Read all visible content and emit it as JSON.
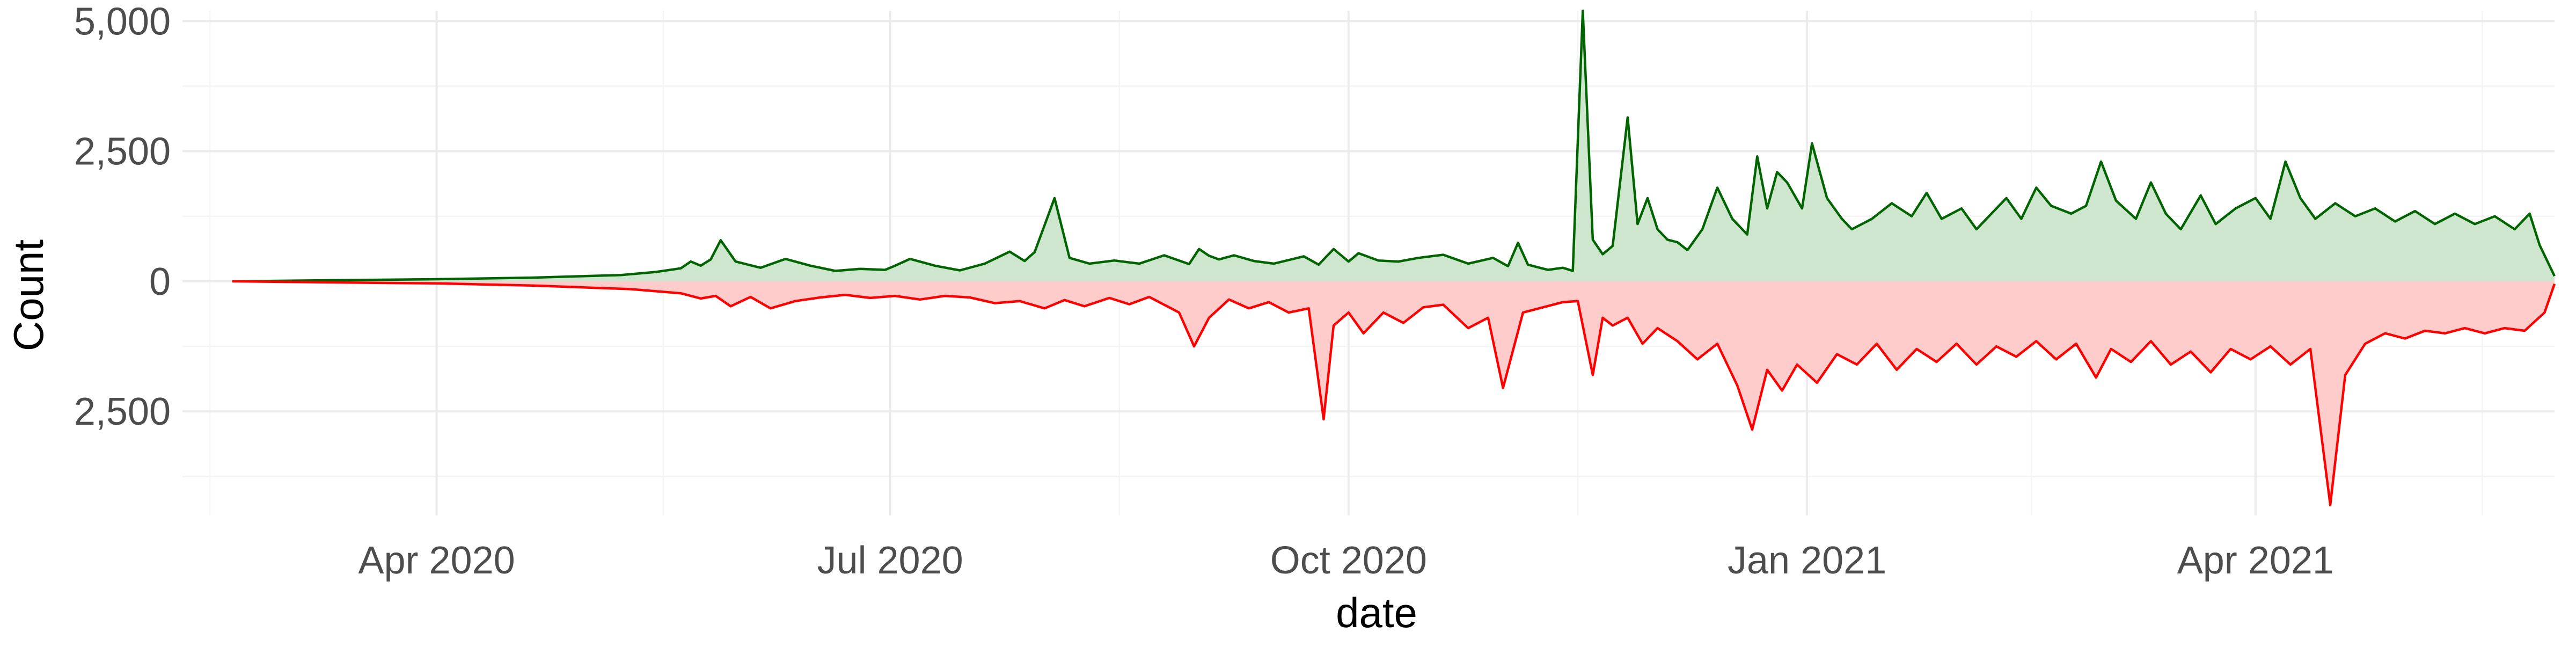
{
  "chart_data": {
    "type": "area",
    "title": "",
    "xlabel": "date",
    "ylabel": "Count",
    "x_range": [
      "2020-02-10",
      "2021-05-31"
    ],
    "ylim": [
      -4500,
      5200
    ],
    "x_ticks": [
      {
        "date": "2020-04-01",
        "label": "Apr 2020"
      },
      {
        "date": "2020-07-01",
        "label": "Jul 2020"
      },
      {
        "date": "2020-10-01",
        "label": "Oct 2020"
      },
      {
        "date": "2021-01-01",
        "label": "Jan 2021"
      },
      {
        "date": "2021-04-01",
        "label": "Apr 2021"
      }
    ],
    "y_ticks": [
      {
        "value": 5000,
        "label": "5,000"
      },
      {
        "value": 2500,
        "label": "2,500"
      },
      {
        "value": 0,
        "label": "0"
      },
      {
        "value": -2500,
        "label": "2,500"
      }
    ],
    "grid": true,
    "legend": "none",
    "series": [
      {
        "direction": "positive",
        "color": "#006400",
        "fill": "#cde6cd",
        "points": [
          [
            "2020-02-20",
            0
          ],
          [
            "2020-03-10",
            20
          ],
          [
            "2020-04-01",
            40
          ],
          [
            "2020-04-20",
            70
          ],
          [
            "2020-05-08",
            120
          ],
          [
            "2020-05-15",
            180
          ],
          [
            "2020-05-20",
            250
          ],
          [
            "2020-05-22",
            380
          ],
          [
            "2020-05-24",
            300
          ],
          [
            "2020-05-26",
            420
          ],
          [
            "2020-05-28",
            790
          ],
          [
            "2020-05-31",
            380
          ],
          [
            "2020-06-05",
            260
          ],
          [
            "2020-06-10",
            430
          ],
          [
            "2020-06-15",
            300
          ],
          [
            "2020-06-20",
            200
          ],
          [
            "2020-06-25",
            240
          ],
          [
            "2020-06-30",
            220
          ],
          [
            "2020-07-02",
            300
          ],
          [
            "2020-07-05",
            430
          ],
          [
            "2020-07-10",
            300
          ],
          [
            "2020-07-15",
            210
          ],
          [
            "2020-07-20",
            340
          ],
          [
            "2020-07-25",
            570
          ],
          [
            "2020-07-28",
            390
          ],
          [
            "2020-07-30",
            560
          ],
          [
            "2020-08-03",
            1600
          ],
          [
            "2020-08-06",
            450
          ],
          [
            "2020-08-10",
            340
          ],
          [
            "2020-08-15",
            400
          ],
          [
            "2020-08-20",
            340
          ],
          [
            "2020-08-25",
            500
          ],
          [
            "2020-08-30",
            330
          ],
          [
            "2020-09-01",
            620
          ],
          [
            "2020-09-03",
            490
          ],
          [
            "2020-09-05",
            420
          ],
          [
            "2020-09-08",
            500
          ],
          [
            "2020-09-12",
            390
          ],
          [
            "2020-09-16",
            340
          ],
          [
            "2020-09-22",
            480
          ],
          [
            "2020-09-25",
            320
          ],
          [
            "2020-09-28",
            620
          ],
          [
            "2020-10-01",
            380
          ],
          [
            "2020-10-03",
            540
          ],
          [
            "2020-10-07",
            400
          ],
          [
            "2020-10-11",
            380
          ],
          [
            "2020-10-15",
            450
          ],
          [
            "2020-10-20",
            510
          ],
          [
            "2020-10-25",
            340
          ],
          [
            "2020-10-30",
            450
          ],
          [
            "2020-11-02",
            290
          ],
          [
            "2020-11-04",
            740
          ],
          [
            "2020-11-06",
            320
          ],
          [
            "2020-11-08",
            270
          ],
          [
            "2020-11-10",
            220
          ],
          [
            "2020-11-13",
            260
          ],
          [
            "2020-11-15",
            200
          ],
          [
            "2020-11-17",
            5200
          ],
          [
            "2020-11-19",
            800
          ],
          [
            "2020-11-21",
            520
          ],
          [
            "2020-11-23",
            680
          ],
          [
            "2020-11-26",
            3150
          ],
          [
            "2020-11-28",
            1100
          ],
          [
            "2020-11-30",
            1600
          ],
          [
            "2020-12-02",
            1000
          ],
          [
            "2020-12-04",
            800
          ],
          [
            "2020-12-06",
            750
          ],
          [
            "2020-12-08",
            600
          ],
          [
            "2020-12-11",
            1000
          ],
          [
            "2020-12-14",
            1800
          ],
          [
            "2020-12-17",
            1200
          ],
          [
            "2020-12-20",
            900
          ],
          [
            "2020-12-22",
            2400
          ],
          [
            "2020-12-24",
            1400
          ],
          [
            "2020-12-26",
            2100
          ],
          [
            "2020-12-28",
            1900
          ],
          [
            "2020-12-31",
            1400
          ],
          [
            "2021-01-02",
            2650
          ],
          [
            "2021-01-05",
            1600
          ],
          [
            "2021-01-08",
            1200
          ],
          [
            "2021-01-10",
            1000
          ],
          [
            "2021-01-14",
            1200
          ],
          [
            "2021-01-18",
            1500
          ],
          [
            "2021-01-22",
            1250
          ],
          [
            "2021-01-25",
            1700
          ],
          [
            "2021-01-28",
            1200
          ],
          [
            "2021-02-01",
            1400
          ],
          [
            "2021-02-04",
            1000
          ],
          [
            "2021-02-07",
            1300
          ],
          [
            "2021-02-10",
            1600
          ],
          [
            "2021-02-13",
            1200
          ],
          [
            "2021-02-16",
            1800
          ],
          [
            "2021-02-19",
            1450
          ],
          [
            "2021-02-23",
            1300
          ],
          [
            "2021-02-26",
            1450
          ],
          [
            "2021-03-01",
            2300
          ],
          [
            "2021-03-04",
            1550
          ],
          [
            "2021-03-08",
            1200
          ],
          [
            "2021-03-11",
            1900
          ],
          [
            "2021-03-14",
            1300
          ],
          [
            "2021-03-17",
            1000
          ],
          [
            "2021-03-21",
            1650
          ],
          [
            "2021-03-24",
            1100
          ],
          [
            "2021-03-28",
            1400
          ],
          [
            "2021-04-01",
            1600
          ],
          [
            "2021-04-04",
            1200
          ],
          [
            "2021-04-07",
            2300
          ],
          [
            "2021-04-10",
            1600
          ],
          [
            "2021-04-13",
            1200
          ],
          [
            "2021-04-17",
            1500
          ],
          [
            "2021-04-21",
            1250
          ],
          [
            "2021-04-25",
            1400
          ],
          [
            "2021-04-29",
            1150
          ],
          [
            "2021-05-03",
            1350
          ],
          [
            "2021-05-07",
            1100
          ],
          [
            "2021-05-11",
            1300
          ],
          [
            "2021-05-15",
            1100
          ],
          [
            "2021-05-19",
            1250
          ],
          [
            "2021-05-23",
            1000
          ],
          [
            "2021-05-26",
            1300
          ],
          [
            "2021-05-28",
            700
          ],
          [
            "2021-05-31",
            100
          ]
        ]
      },
      {
        "direction": "negative",
        "color": "#ff0000",
        "fill": "#ffcccc",
        "points": [
          [
            "2020-02-20",
            0
          ],
          [
            "2020-03-10",
            -20
          ],
          [
            "2020-04-01",
            -40
          ],
          [
            "2020-04-20",
            -80
          ],
          [
            "2020-05-10",
            -150
          ],
          [
            "2020-05-20",
            -230
          ],
          [
            "2020-05-24",
            -330
          ],
          [
            "2020-05-27",
            -280
          ],
          [
            "2020-05-30",
            -480
          ],
          [
            "2020-06-03",
            -300
          ],
          [
            "2020-06-07",
            -520
          ],
          [
            "2020-06-12",
            -380
          ],
          [
            "2020-06-17",
            -310
          ],
          [
            "2020-06-22",
            -260
          ],
          [
            "2020-06-27",
            -320
          ],
          [
            "2020-07-02",
            -280
          ],
          [
            "2020-07-07",
            -350
          ],
          [
            "2020-07-12",
            -280
          ],
          [
            "2020-07-17",
            -310
          ],
          [
            "2020-07-22",
            -420
          ],
          [
            "2020-07-27",
            -380
          ],
          [
            "2020-08-01",
            -520
          ],
          [
            "2020-08-05",
            -360
          ],
          [
            "2020-08-09",
            -480
          ],
          [
            "2020-08-14",
            -320
          ],
          [
            "2020-08-18",
            -440
          ],
          [
            "2020-08-22",
            -300
          ],
          [
            "2020-08-28",
            -600
          ],
          [
            "2020-08-31",
            -1250
          ],
          [
            "2020-09-03",
            -700
          ],
          [
            "2020-09-07",
            -350
          ],
          [
            "2020-09-11",
            -520
          ],
          [
            "2020-09-15",
            -400
          ],
          [
            "2020-09-19",
            -600
          ],
          [
            "2020-09-23",
            -520
          ],
          [
            "2020-09-26",
            -2650
          ],
          [
            "2020-09-28",
            -850
          ],
          [
            "2020-10-01",
            -600
          ],
          [
            "2020-10-04",
            -1000
          ],
          [
            "2020-10-08",
            -600
          ],
          [
            "2020-10-12",
            -800
          ],
          [
            "2020-10-16",
            -500
          ],
          [
            "2020-10-20",
            -450
          ],
          [
            "2020-10-25",
            -900
          ],
          [
            "2020-10-29",
            -700
          ],
          [
            "2020-11-01",
            -2050
          ],
          [
            "2020-11-05",
            -600
          ],
          [
            "2020-11-09",
            -500
          ],
          [
            "2020-11-13",
            -400
          ],
          [
            "2020-11-16",
            -380
          ],
          [
            "2020-11-19",
            -1800
          ],
          [
            "2020-11-21",
            -700
          ],
          [
            "2020-11-23",
            -850
          ],
          [
            "2020-11-26",
            -700
          ],
          [
            "2020-11-29",
            -1200
          ],
          [
            "2020-12-02",
            -900
          ],
          [
            "2020-12-06",
            -1150
          ],
          [
            "2020-12-10",
            -1500
          ],
          [
            "2020-12-14",
            -1200
          ],
          [
            "2020-12-18",
            -2000
          ],
          [
            "2020-12-21",
            -2850
          ],
          [
            "2020-12-24",
            -1700
          ],
          [
            "2020-12-27",
            -2100
          ],
          [
            "2020-12-30",
            -1600
          ],
          [
            "2021-01-03",
            -1950
          ],
          [
            "2021-01-07",
            -1400
          ],
          [
            "2021-01-11",
            -1600
          ],
          [
            "2021-01-15",
            -1200
          ],
          [
            "2021-01-19",
            -1700
          ],
          [
            "2021-01-23",
            -1300
          ],
          [
            "2021-01-27",
            -1550
          ],
          [
            "2021-01-31",
            -1200
          ],
          [
            "2021-02-04",
            -1600
          ],
          [
            "2021-02-08",
            -1250
          ],
          [
            "2021-02-12",
            -1450
          ],
          [
            "2021-02-16",
            -1150
          ],
          [
            "2021-02-20",
            -1500
          ],
          [
            "2021-02-24",
            -1200
          ],
          [
            "2021-02-28",
            -1850
          ],
          [
            "2021-03-03",
            -1300
          ],
          [
            "2021-03-07",
            -1550
          ],
          [
            "2021-03-11",
            -1150
          ],
          [
            "2021-03-15",
            -1600
          ],
          [
            "2021-03-19",
            -1350
          ],
          [
            "2021-03-23",
            -1750
          ],
          [
            "2021-03-27",
            -1300
          ],
          [
            "2021-03-31",
            -1500
          ],
          [
            "2021-04-04",
            -1250
          ],
          [
            "2021-04-08",
            -1600
          ],
          [
            "2021-04-12",
            -1300
          ],
          [
            "2021-04-16",
            -4300
          ],
          [
            "2021-04-19",
            -1800
          ],
          [
            "2021-04-23",
            -1200
          ],
          [
            "2021-04-27",
            -1000
          ],
          [
            "2021-05-01",
            -1100
          ],
          [
            "2021-05-05",
            -950
          ],
          [
            "2021-05-09",
            -1000
          ],
          [
            "2021-05-13",
            -900
          ],
          [
            "2021-05-17",
            -1000
          ],
          [
            "2021-05-21",
            -900
          ],
          [
            "2021-05-25",
            -950
          ],
          [
            "2021-05-29",
            -600
          ],
          [
            "2021-05-31",
            -50
          ]
        ]
      }
    ]
  }
}
